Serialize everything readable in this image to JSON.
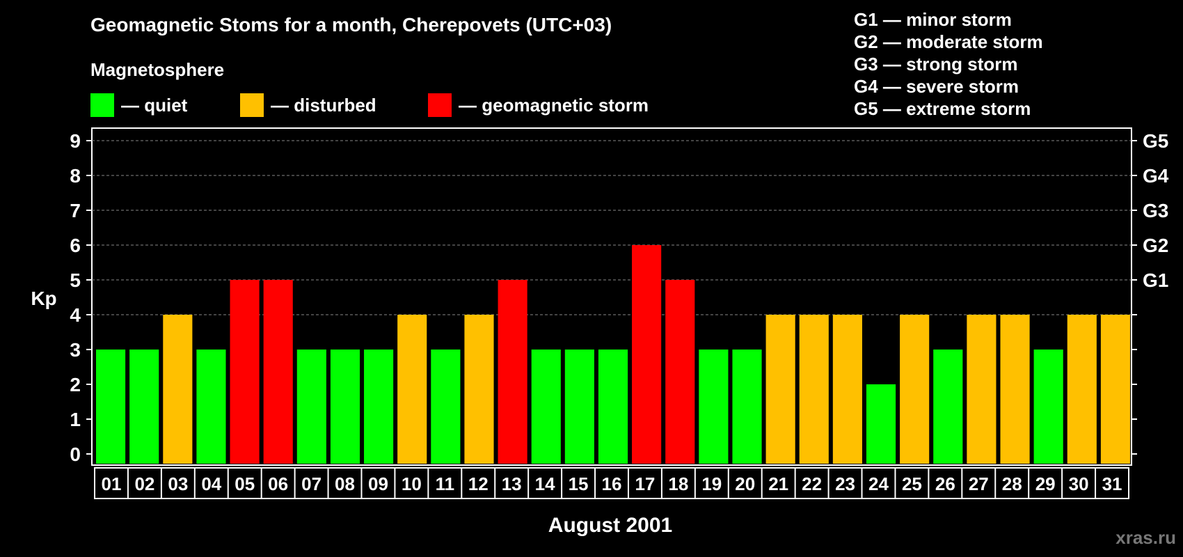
{
  "title": "Geomagnetic Stoms for a month, Cherepovets (UTC+03)",
  "legend": {
    "heading": "Magnetosphere",
    "items": [
      {
        "label": "— quiet",
        "color": "#00ff00"
      },
      {
        "label": "— disturbed",
        "color": "#ffc000"
      },
      {
        "label": "— geomagnetic storm",
        "color": "#ff0000"
      }
    ]
  },
  "g_levels": [
    "G1 — minor storm",
    "G2 — moderate storm",
    "G3 — strong storm",
    "G4 — severe storm",
    "G5 — extreme storm"
  ],
  "watermark": "xras.ru",
  "chart_data": {
    "type": "bar",
    "title": "Geomagnetic Stoms for a month, Cherepovets (UTC+03)",
    "xlabel": "August 2001",
    "ylabel": "Kp",
    "ylim": [
      0,
      9
    ],
    "yticks": [
      "0",
      "1",
      "2",
      "3",
      "4",
      "5",
      "6",
      "7",
      "8",
      "9"
    ],
    "right_ticks": [
      {
        "kp": 5,
        "label": "G1"
      },
      {
        "kp": 6,
        "label": "G2"
      },
      {
        "kp": 7,
        "label": "G3"
      },
      {
        "kp": 8,
        "label": "G4"
      },
      {
        "kp": 9,
        "label": "G5"
      }
    ],
    "categories": [
      "01",
      "02",
      "03",
      "04",
      "05",
      "06",
      "07",
      "08",
      "09",
      "10",
      "11",
      "12",
      "13",
      "14",
      "15",
      "16",
      "17",
      "18",
      "19",
      "20",
      "21",
      "22",
      "23",
      "24",
      "25",
      "26",
      "27",
      "28",
      "29",
      "30",
      "31"
    ],
    "values": [
      3,
      3,
      4,
      3,
      5,
      5,
      3,
      3,
      3,
      4,
      3,
      4,
      5,
      3,
      3,
      3,
      6,
      5,
      3,
      3,
      4,
      4,
      4,
      2,
      4,
      3,
      4,
      4,
      3,
      4,
      4
    ],
    "color_rule": {
      "quiet": "#00ff00",
      "disturbed": "#ffc000",
      "storm": "#ff0000"
    },
    "grid": true,
    "legend_position": "top"
  }
}
